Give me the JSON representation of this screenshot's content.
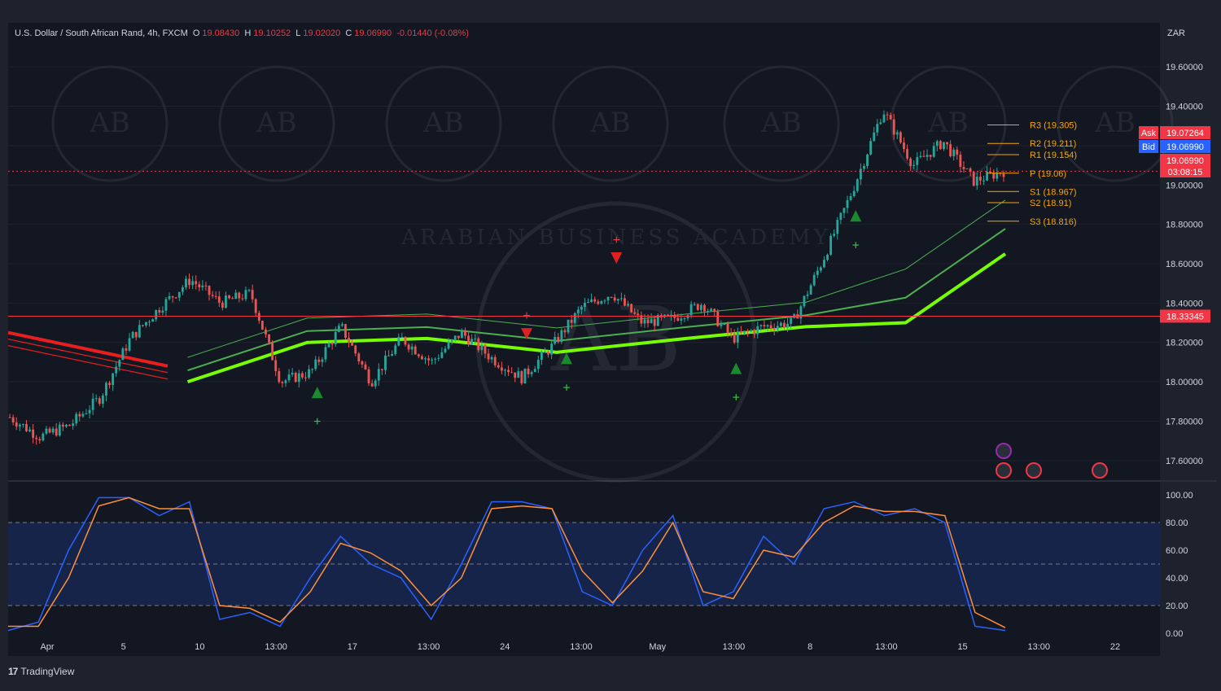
{
  "header": {
    "symbol": "U.S. Dollar / South African Rand, 4h, FXCM",
    "open_label": "O",
    "open": "19.08430",
    "high_label": "H",
    "high": "19.10252",
    "low_label": "L",
    "low": "19.02020",
    "close_label": "C",
    "close": "19.06990",
    "change": "-0.01440 (-0.08%)"
  },
  "currency": "ZAR",
  "branding": {
    "tradingview": "TradingView",
    "tv_mark": "17"
  },
  "watermark": {
    "text": "ARABIAN BUSINESS ACADEMY",
    "logo": "AB"
  },
  "colors": {
    "background": "#131722",
    "frame": "#1e222d",
    "grid": "#2a2e39",
    "bull": "#26a69a",
    "bear": "#ef5350",
    "ask": "#f23645",
    "bid": "#2962ff",
    "pivot": "#f7a600",
    "ribbon_fast": "#4caf50",
    "ribbon_slow": "#76ff03",
    "ribbon_red": "#e91e1e",
    "stoch_k": "#2962ff",
    "stoch_d": "#ff8f3a"
  },
  "chart_data": [
    {
      "type": "candlestick",
      "timeframe": "4h",
      "price_axis_labels": [
        "19.60000",
        "19.40000",
        "19.20000",
        "19.00000",
        "18.80000",
        "18.60000",
        "18.40000",
        "18.20000",
        "18.00000",
        "17.80000",
        "17.60000"
      ],
      "ylim": [
        17.5,
        19.7
      ],
      "time_axis_labels": [
        "Apr",
        "5",
        "10",
        "13:00",
        "17",
        "13:00",
        "24",
        "13:00",
        "May",
        "13:00",
        "8",
        "13:00",
        "15",
        "13:00",
        "22"
      ],
      "close_path": [
        17.82,
        17.72,
        17.78,
        17.92,
        18.22,
        18.38,
        18.52,
        18.4,
        18.45,
        18.0,
        18.05,
        18.28,
        18.0,
        18.22,
        18.1,
        18.25,
        18.12,
        18.02,
        18.18,
        18.38,
        18.45,
        18.3,
        18.32,
        18.4,
        18.22,
        18.28,
        18.3,
        18.62,
        18.98,
        19.38,
        19.1,
        19.22,
        19.02,
        19.07
      ],
      "horizontal_line": {
        "price": 18.33345,
        "label": "18.33345"
      },
      "pivots": [
        {
          "label": "R3 (19.305)",
          "price": 19.305
        },
        {
          "label": "R2 (19.211)",
          "price": 19.211
        },
        {
          "label": "R1 (19.154)",
          "price": 19.154
        },
        {
          "label": "P (19.06)",
          "price": 19.06
        },
        {
          "label": "S1 (18.967)",
          "price": 18.967
        },
        {
          "label": "S2 (18.91)",
          "price": 18.91
        },
        {
          "label": "S3 (18.816)",
          "price": 18.816
        }
      ],
      "quote_tags": [
        {
          "label": "Ask",
          "value": "19.07264",
          "price": 19.07264
        },
        {
          "label": "Bid",
          "value": "19.06990",
          "price": 19.0699
        },
        {
          "label": "",
          "value": "19.06990",
          "price": 19.0699
        },
        {
          "label": "",
          "value": "03:08:15",
          "price": 19.0699
        }
      ],
      "ribbon": {
        "green": [
          [
            0.18,
            18.0
          ],
          [
            0.3,
            18.2
          ],
          [
            0.42,
            18.22
          ],
          [
            0.55,
            18.15
          ],
          [
            0.68,
            18.22
          ],
          [
            0.8,
            18.28
          ],
          [
            0.9,
            18.3
          ],
          [
            1.0,
            18.65
          ]
        ],
        "red_end": 0.16
      },
      "signals": [
        {
          "t": 0.31,
          "kind": "buy"
        },
        {
          "t": 0.56,
          "kind": "buy"
        },
        {
          "t": 0.73,
          "kind": "buy"
        },
        {
          "t": 0.85,
          "kind": "buy"
        },
        {
          "t": 0.52,
          "kind": "sell"
        },
        {
          "t": 0.61,
          "kind": "sell"
        }
      ]
    },
    {
      "type": "line",
      "indicator": "Stochastic",
      "y_axis_labels": [
        "100.00",
        "80.00",
        "60.00",
        "40.00",
        "20.00",
        "0.00"
      ],
      "ylim": [
        0,
        100
      ],
      "bands": [
        20,
        50,
        80
      ],
      "series": [
        {
          "key": "k",
          "values": [
            2,
            8,
            60,
            98,
            98,
            85,
            95,
            10,
            15,
            5,
            40,
            70,
            50,
            40,
            10,
            50,
            95,
            95,
            90,
            30,
            20,
            60,
            85,
            20,
            30,
            70,
            50,
            90,
            95,
            85,
            90,
            80,
            5,
            2
          ]
        },
        {
          "key": "d",
          "values": [
            5,
            5,
            40,
            92,
            98,
            90,
            90,
            20,
            18,
            8,
            30,
            65,
            58,
            45,
            20,
            40,
            90,
            92,
            90,
            45,
            22,
            45,
            80,
            30,
            25,
            60,
            55,
            80,
            92,
            88,
            88,
            85,
            15,
            4
          ]
        }
      ]
    }
  ]
}
